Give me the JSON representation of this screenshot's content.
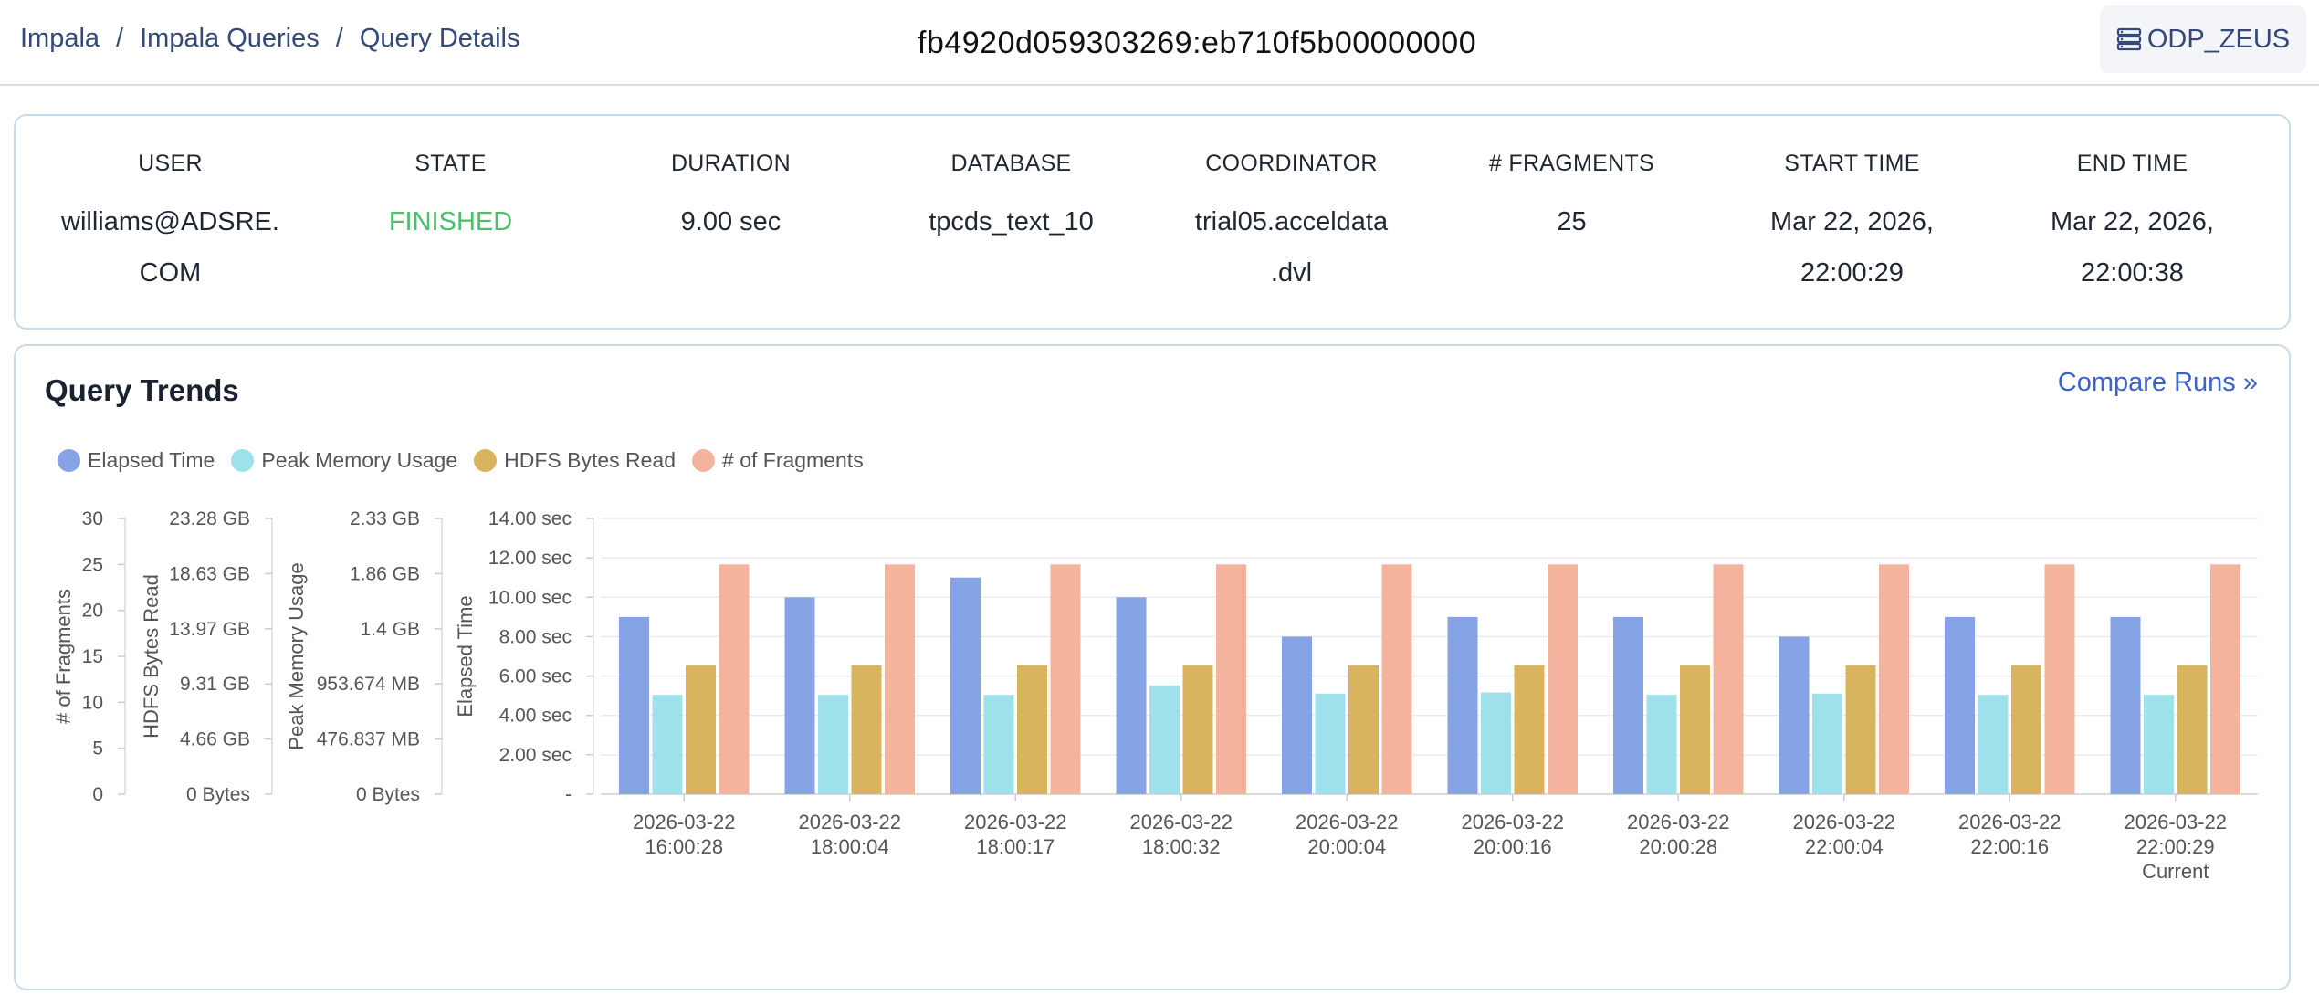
{
  "header": {
    "breadcrumb": [
      "Impala",
      "Impala Queries",
      "Query Details"
    ],
    "separator": "/",
    "query_id": "fb4920d059303269:eb710f5b00000000",
    "cluster": "ODP_ZEUS"
  },
  "summary": [
    {
      "label": "USER",
      "lines": [
        "williams@ADSRE.",
        "COM"
      ]
    },
    {
      "label": "STATE",
      "lines": [
        "FINISHED"
      ]
    },
    {
      "label": "DURATION",
      "lines": [
        "9.00 sec"
      ]
    },
    {
      "label": "DATABASE",
      "lines": [
        "tpcds_text_10"
      ]
    },
    {
      "label": "COORDINATOR",
      "lines": [
        "trial05.acceldata",
        ".dvl"
      ]
    },
    {
      "label": "# FRAGMENTS",
      "lines": [
        "25"
      ]
    },
    {
      "label": "START TIME",
      "lines": [
        "Mar 22, 2026,",
        "22:00:29"
      ]
    },
    {
      "label": "END TIME",
      "lines": [
        "Mar 22, 2026,",
        "22:00:38"
      ]
    }
  ],
  "trends": {
    "title": "Query Trends",
    "compare_label": "Compare Runs",
    "compare_icon": "double-chevron-right-icon"
  },
  "colors": {
    "elapsed": "#86a3e6",
    "memory": "#9fe1ea",
    "hdfs": "#d8b45e",
    "fragments": "#f4b39d",
    "state_finished": "#4cbf6b",
    "link": "#3b63c9"
  },
  "chart_data": {
    "type": "bar",
    "categories": [
      [
        "2026-03-22",
        "16:00:28"
      ],
      [
        "2026-03-22",
        "18:00:04"
      ],
      [
        "2026-03-22",
        "18:00:17"
      ],
      [
        "2026-03-22",
        "18:00:32"
      ],
      [
        "2026-03-22",
        "20:00:04"
      ],
      [
        "2026-03-22",
        "20:00:16"
      ],
      [
        "2026-03-22",
        "20:00:28"
      ],
      [
        "2026-03-22",
        "22:00:04"
      ],
      [
        "2026-03-22",
        "22:00:16"
      ],
      [
        "2026-03-22",
        "22:00:29",
        "Current"
      ]
    ],
    "series": [
      {
        "name": "Elapsed Time",
        "key": "elapsed",
        "axis": "Elapsed Time",
        "unit": "sec",
        "values": [
          9,
          10,
          11,
          10,
          8,
          9,
          9,
          8,
          9,
          9
        ]
      },
      {
        "name": "Peak Memory Usage",
        "key": "memory",
        "axis": "Peak Memory Usage",
        "unit": "GB",
        "values": [
          0.84,
          0.84,
          0.84,
          0.92,
          0.85,
          0.86,
          0.84,
          0.85,
          0.84,
          0.84
        ]
      },
      {
        "name": "HDFS Bytes Read",
        "key": "hdfs",
        "axis": "HDFS Bytes Read",
        "unit": "GB",
        "values": [
          10.9,
          10.9,
          10.9,
          10.9,
          10.9,
          10.9,
          10.9,
          10.9,
          10.9,
          10.9
        ]
      },
      {
        "name": "# of Fragments",
        "key": "fragments",
        "axis": "# of Fragments",
        "unit": "",
        "values": [
          25,
          25,
          25,
          25,
          25,
          25,
          25,
          25,
          25,
          25
        ]
      }
    ],
    "axes": {
      "fragments": {
        "label": "# of Fragments",
        "ticks": [
          "0",
          "5",
          "10",
          "15",
          "20",
          "25",
          "30"
        ],
        "max": 30
      },
      "hdfs": {
        "label": "HDFS Bytes Read",
        "ticks": [
          "0 Bytes",
          "4.66 GB",
          "9.31 GB",
          "13.97 GB",
          "18.63 GB",
          "23.28 GB"
        ],
        "max": 23.28
      },
      "memory": {
        "label": "Peak Memory Usage",
        "ticks": [
          "0 Bytes",
          "476.837 MB",
          "953.674 MB",
          "1.4 GB",
          "1.86 GB",
          "2.33 GB"
        ],
        "max": 1.86
      },
      "elapsed": {
        "label": "Elapsed Time",
        "ticks": [
          "-",
          "2.00 sec",
          "4.00 sec",
          "6.00 sec",
          "8.00 sec",
          "10.00 sec",
          "12.00 sec",
          "14.00 sec"
        ],
        "max": 14
      }
    },
    "grid": true,
    "legend_position": "top-left"
  }
}
